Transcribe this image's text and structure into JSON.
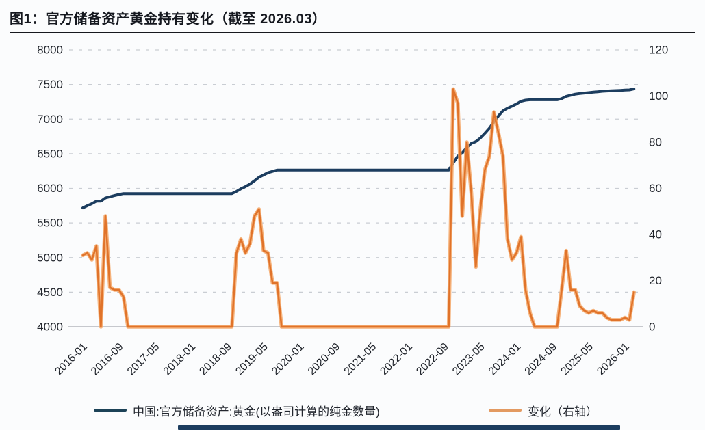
{
  "figure": {
    "title": "图1：官方储备资产黄金持有变化（截至 2026.03）"
  },
  "legend": {
    "series1_label": "中国:官方储备资产:黄金(以盎司计算的纯金数量)",
    "series2_label": "变化（右轴）"
  },
  "colors": {
    "gold_line": "#1c3d5f",
    "change_line": "#e0732a",
    "change_line_halo": "#f3a464",
    "legend_gold_swatch": "#1c4257",
    "legend_change_swatch": "#e39a61",
    "grid_line": "#c9cdd3",
    "axis_line": "#b4b7bd",
    "tick_text": "#1f232a"
  },
  "chart_data": {
    "type": "line",
    "title": "图1：官方储备资产黄金持有变化（截至 2026.03）",
    "x_start": "2016-01",
    "x_end": "2026-03",
    "x_tick_step_months": 8,
    "x_tick_labels": [
      "2016-01",
      "2016-09",
      "2017-05",
      "2018-01",
      "2018-09",
      "2019-05",
      "2020-01",
      "2020-09",
      "2021-05",
      "2022-01",
      "2022-09",
      "2023-05",
      "2024-01",
      "2024-09",
      "2025-05",
      "2026-01"
    ],
    "left_axis": {
      "min": 4000,
      "max": 8000,
      "step": 500,
      "tick_labels": [
        "4000",
        "4500",
        "5000",
        "5500",
        "6000",
        "6500",
        "7000",
        "7500",
        "8000"
      ]
    },
    "right_axis": {
      "min": 0,
      "max": 120,
      "step": 20,
      "tick_labels": [
        "0",
        "20",
        "40",
        "60",
        "80",
        "100",
        "120"
      ]
    },
    "grid": "horizontal-dashed",
    "legend_position": "bottom",
    "series": [
      {
        "name": "中国:官方储备资产:黄金(以盎司计算的纯金数量)",
        "axis": "left",
        "values": [
          5718,
          5750,
          5779,
          5814,
          5814,
          5862,
          5879,
          5895,
          5911,
          5924,
          5924,
          5924,
          5924,
          5924,
          5924,
          5924,
          5924,
          5924,
          5924,
          5924,
          5924,
          5924,
          5924,
          5924,
          5924,
          5924,
          5924,
          5924,
          5924,
          5924,
          5924,
          5924,
          5924,
          5924,
          5956,
          5994,
          6026,
          6062,
          6110,
          6161,
          6194,
          6226,
          6245,
          6264,
          6264,
          6264,
          6264,
          6264,
          6264,
          6264,
          6264,
          6264,
          6264,
          6264,
          6264,
          6264,
          6264,
          6264,
          6264,
          6264,
          6264,
          6264,
          6264,
          6264,
          6264,
          6264,
          6264,
          6264,
          6264,
          6264,
          6264,
          6264,
          6264,
          6264,
          6264,
          6264,
          6264,
          6264,
          6264,
          6264,
          6264,
          6264,
          6367,
          6464,
          6512,
          6592,
          6650,
          6676,
          6727,
          6795,
          6869,
          6962,
          7046,
          7120,
          7158,
          7187,
          7219,
          7258,
          7274,
          7280,
          7280,
          7280,
          7280,
          7280,
          7280,
          7280,
          7296,
          7329,
          7345,
          7361,
          7370,
          7377,
          7383,
          7390,
          7396,
          7402,
          7406,
          7409,
          7412,
          7415,
          7419,
          7422,
          7437
        ]
      },
      {
        "name": "变化（右轴）",
        "axis": "right",
        "values": [
          31,
          32,
          29,
          35,
          0,
          48,
          17,
          16,
          16,
          13,
          0,
          0,
          0,
          0,
          0,
          0,
          0,
          0,
          0,
          0,
          0,
          0,
          0,
          0,
          0,
          0,
          0,
          0,
          0,
          0,
          0,
          0,
          0,
          0,
          32,
          38,
          32,
          36,
          48,
          51,
          33,
          32,
          19,
          19,
          0,
          0,
          0,
          0,
          0,
          0,
          0,
          0,
          0,
          0,
          0,
          0,
          0,
          0,
          0,
          0,
          0,
          0,
          0,
          0,
          0,
          0,
          0,
          0,
          0,
          0,
          0,
          0,
          0,
          0,
          0,
          0,
          0,
          0,
          0,
          0,
          0,
          0,
          103,
          97,
          48,
          80,
          58,
          26,
          51,
          68,
          74,
          93,
          84,
          74,
          38,
          29,
          32,
          39,
          16,
          6,
          0,
          0,
          0,
          0,
          0,
          0,
          16,
          33,
          16,
          16,
          9,
          7,
          6,
          7,
          6,
          6,
          4,
          3,
          3,
          3,
          4,
          3,
          15
        ]
      }
    ]
  }
}
